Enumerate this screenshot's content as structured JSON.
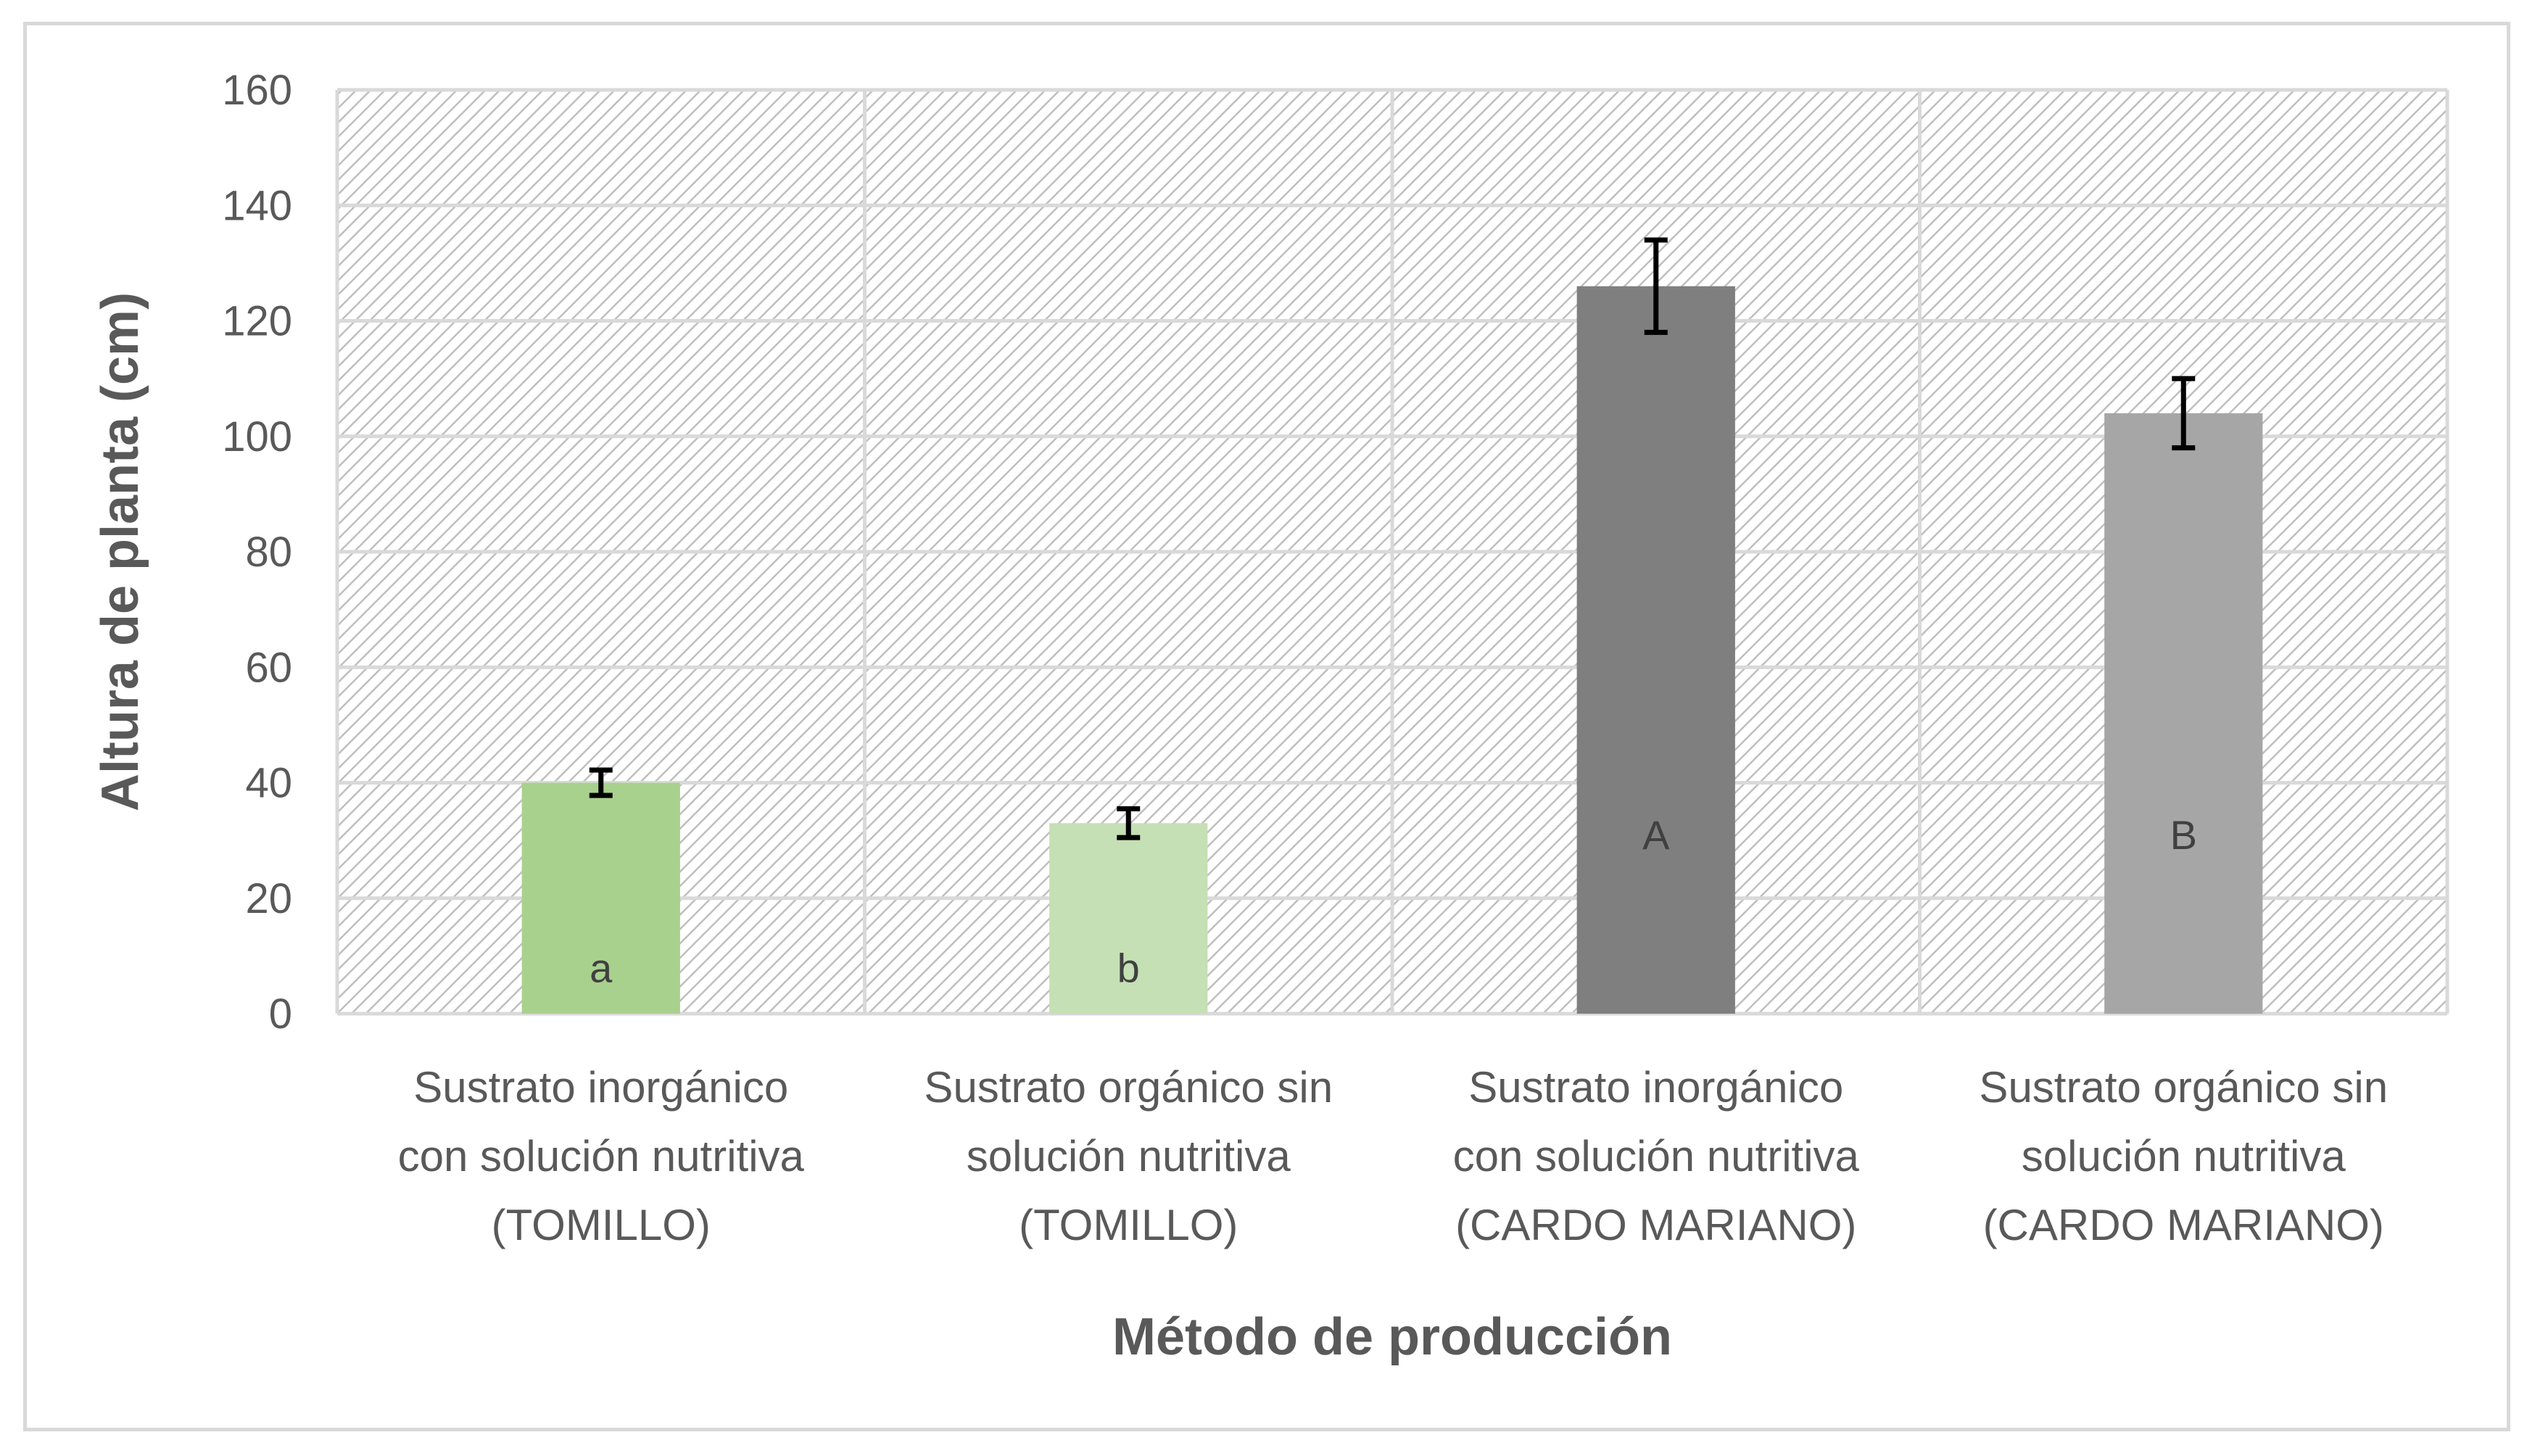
{
  "chart_data": {
    "type": "bar",
    "title": "",
    "xlabel": "Método de producción",
    "ylabel": "Altura de planta (cm)",
    "ylim": [
      0,
      160
    ],
    "yticks": [
      0,
      20,
      40,
      60,
      80,
      100,
      120,
      140,
      160
    ],
    "grid": true,
    "legend": "none",
    "categories": [
      [
        "Sustrato inorgánico",
        "con solución nutritiva",
        "(TOMILLO)"
      ],
      [
        "Sustrato orgánico sin",
        "solución nutritiva",
        "(TOMILLO)"
      ],
      [
        "Sustrato inorgánico",
        "con solución nutritiva",
        "(CARDO MARIANO)"
      ],
      [
        "Sustrato orgánico sin",
        "solución nutritiva",
        "(CARDO MARIANO)"
      ]
    ],
    "values": [
      40,
      33,
      126,
      104
    ],
    "error": [
      2.2,
      2.5,
      8,
      6
    ],
    "bar_colors": [
      "#a9d18e",
      "#c5e0b4",
      "#7f7f7f",
      "#a6a6a6"
    ],
    "letter_colors": [
      "#404040",
      "#404040",
      "#404040",
      "#404040"
    ],
    "letters": [
      "a",
      "b",
      "A",
      "B"
    ],
    "plot_background": "hatched light gray"
  }
}
